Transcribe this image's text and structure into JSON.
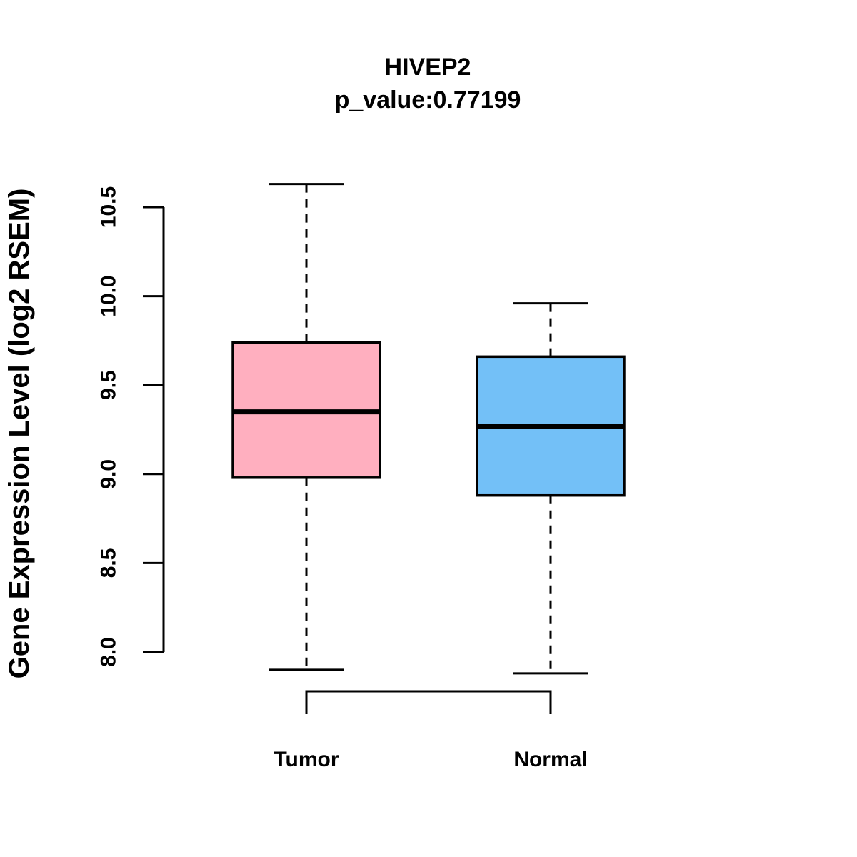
{
  "chart_data": {
    "type": "boxplot",
    "title": "HIVEP2",
    "subtitle": "p_value:0.77199",
    "ylabel": "Gene Expression Level (log2 RSEM)",
    "xlabel": "",
    "categories": [
      "Tumor",
      "Normal"
    ],
    "yticks": [
      "8.0",
      "8.5",
      "9.0",
      "9.5",
      "10.0",
      "10.5"
    ],
    "ylim": [
      7.75,
      10.7
    ],
    "grid": false,
    "legend": "none",
    "series": [
      {
        "name": "Tumor",
        "color": "#FFAFBF",
        "whisker_low": 7.9,
        "q1": 8.98,
        "median": 9.35,
        "q3": 9.74,
        "whisker_high": 10.63
      },
      {
        "name": "Normal",
        "color": "#73C0F7",
        "whisker_low": 7.88,
        "q1": 8.88,
        "median": 9.27,
        "q3": 9.66,
        "whisker_high": 9.96
      }
    ],
    "line_color": "#000000",
    "background_color": "#ffffff"
  }
}
